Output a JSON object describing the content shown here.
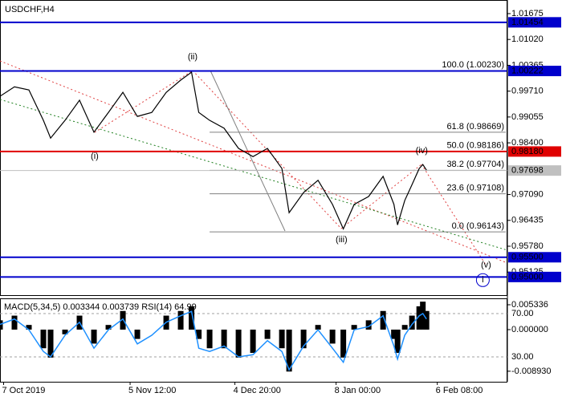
{
  "chart_data": [
    {
      "type": "line",
      "title": "USDCHF,H4",
      "xlim": [
        0,
        140.4
      ],
      "ylim": [
        0.9454,
        1.0202
      ],
      "yticks": [
        1.01675,
        {
          "value": 1.0102,
          "label": "1.01020"
        },
        1.00365,
        {
          "value": 0.9971,
          "label": "0.99710"
        },
        0.99055,
        {
          "value": 0.984,
          "label": "0.98400"
        },
        {
          "value": 0.9709,
          "label": "0.97090"
        },
        0.96435,
        {
          "value": 0.9578,
          "label": "0.95780"
        },
        0.95125
      ],
      "x": [
        0,
        4,
        8,
        12,
        14,
        18,
        22,
        26,
        30,
        34,
        38,
        42,
        46,
        50,
        53,
        55,
        58,
        62,
        66,
        70,
        74,
        78,
        80,
        84,
        88,
        92,
        95,
        98,
        102,
        106,
        109,
        110,
        112,
        114,
        116,
        117,
        118
      ],
      "values": [
        0.9958,
        0.9982,
        0.9974,
        0.9897,
        0.9852,
        0.9897,
        0.9948,
        0.9867,
        0.9917,
        0.9968,
        0.9907,
        0.9917,
        0.9968,
        0.9999,
        1.0019,
        0.9917,
        0.9897,
        0.9877,
        0.9826,
        0.9805,
        0.9826,
        0.9775,
        0.9663,
        0.9714,
        0.9745,
        0.9684,
        0.9622,
        0.9684,
        0.9704,
        0.9755,
        0.9684,
        0.9632,
        0.9694,
        0.9734,
        0.9775,
        0.9785,
        0.9771
      ],
      "color": "#000000",
      "levels": [
        {
          "value": 1.01454,
          "label": "1.01454",
          "color": "#0000cc",
          "text_color": "#ffffff"
        },
        {
          "value": 1.00222,
          "label": "1.00222",
          "color": "#0000cc",
          "text_color": "#ffffff"
        },
        {
          "value": 0.9818,
          "label": "0.98180",
          "color": "#e00000",
          "text_color": "#ffffff"
        },
        {
          "value": 0.97698,
          "label": "0.97698",
          "color": "#c0c0c0",
          "text_color": "#000000"
        },
        {
          "value": 0.955,
          "label": "0.95500",
          "color": "#0000cc",
          "text_color": "#ffffff"
        },
        {
          "value": 0.95,
          "label": "0.95000",
          "color": "#0000cc",
          "text_color": "#ffffff"
        }
      ],
      "fibonacci": {
        "color": "#808080",
        "start_x": 58,
        "levels": [
          {
            "value": 1.0023,
            "label": "100.0 (1.00230)"
          },
          {
            "value": 0.98669,
            "label": "61.8 (0.98669)"
          },
          {
            "value": 0.98186,
            "label": "50.0 (0.98186)"
          },
          {
            "value": 0.97704,
            "label": "38.2 (0.97704)"
          },
          {
            "value": 0.97108,
            "label": "23.6 (0.97108)"
          },
          {
            "value": 0.96143,
            "label": "0.0 (0.96143)"
          }
        ]
      },
      "waves": [
        {
          "text": "(i)",
          "x": 26.2,
          "y": 0.9805,
          "color": "#e02020"
        },
        {
          "text": "(ii)",
          "x": 53.3,
          "y": 1.0057,
          "color": "#e02020"
        },
        {
          "text": "(iii)",
          "x": 94.5,
          "y": 0.9594,
          "color": "#e02020"
        },
        {
          "text": "(iv)",
          "x": 116.7,
          "y": 0.982,
          "color": "#e02020"
        },
        {
          "text": "(v)",
          "x": 134.5,
          "y": 0.953,
          "color": "#e02020"
        },
        {
          "text": "i",
          "x": 133.6,
          "y": 0.9492,
          "color": "#0000cc",
          "circled": true
        }
      ]
    },
    {
      "type": "bar",
      "title": "MACD(5,34,5) 0.003344 0.003739 RSI(14) 64.99",
      "xlim": [
        0,
        140.4
      ],
      "ylim": [
        -0.01119,
        0.00671
      ],
      "y2lim": [
        7,
        84.1
      ],
      "yticks": [
        0.005336,
        {
          "value": 0,
          "label": "0.000000"
        },
        {
          "value": -0.00893,
          "label": "-0.008930"
        }
      ],
      "y2ticks": [
        {
          "value": 70,
          "label": "70.00"
        },
        {
          "value": 30,
          "label": "30.00"
        }
      ],
      "xticks": [
        {
          "value": 1,
          "label": "7 Oct 2019"
        },
        {
          "value": 36,
          "label": "5 Nov 12:00"
        },
        {
          "value": 65,
          "label": "4 Dec 20:00"
        },
        {
          "value": 93,
          "label": "8 Jan 00:00"
        },
        {
          "value": 121,
          "label": "6 Feb 08:00"
        }
      ],
      "x": [
        0,
        4,
        8,
        12,
        14,
        18,
        22,
        26,
        30,
        34,
        38,
        42,
        46,
        50,
        53,
        55,
        58,
        62,
        66,
        70,
        74,
        78,
        80,
        84,
        88,
        92,
        95,
        98,
        102,
        106,
        109,
        110,
        112,
        114,
        116,
        117,
        118
      ],
      "series": [
        {
          "color": "#000000",
          "values": [
            0.002,
            0.003,
            0.001,
            -0.004,
            -0.006,
            -0.001,
            0.003,
            -0.003,
            0.001,
            0.004,
            -0.002,
            0,
            0.003,
            0.004,
            0.005,
            -0.002,
            -0.004,
            -0.004,
            -0.006,
            -0.005,
            -0.002,
            -0.004,
            -0.009,
            -0.004,
            0.001,
            -0.003,
            -0.006,
            0.001,
            0.002,
            0.004,
            -0.002,
            -0.005,
            0.001,
            0.003,
            0.005,
            0.006,
            0.004
          ]
        },
        {
          "color": "#1e90ff",
          "axis": "y2",
          "type": "line",
          "values": [
            60,
            65,
            55,
            35,
            30,
            50,
            62,
            38,
            55,
            65,
            42,
            50,
            62,
            68,
            72,
            38,
            35,
            40,
            30,
            32,
            45,
            35,
            18,
            40,
            55,
            38,
            25,
            55,
            58,
            68,
            40,
            28,
            50,
            60,
            68,
            70,
            65
          ]
        }
      ]
    }
  ]
}
